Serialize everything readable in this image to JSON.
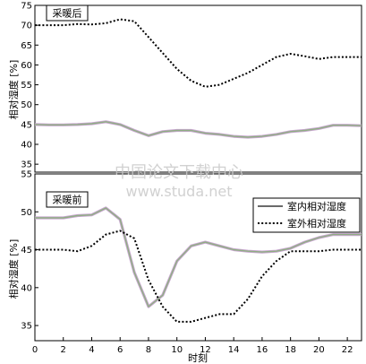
{
  "chart_data": [
    {
      "type": "line",
      "title": "采暖后",
      "ylabel": "相对湿度 [%]",
      "ylim": [
        33,
        75
      ],
      "yticks": [
        35,
        40,
        45,
        50,
        55,
        60,
        65,
        70,
        75
      ],
      "xlim": [
        0,
        23
      ],
      "x": [
        0,
        1,
        2,
        3,
        4,
        5,
        6,
        7,
        8,
        9,
        10,
        11,
        12,
        13,
        14,
        15,
        16,
        17,
        18,
        19,
        20,
        21,
        22,
        23
      ],
      "series": [
        {
          "key": "indoor",
          "style": "solid",
          "color": "#6a6a6a",
          "values": [
            45,
            44.9,
            44.9,
            45,
            45.2,
            45.7,
            45,
            43.5,
            42.2,
            43.2,
            43.5,
            43.5,
            42.8,
            42.5,
            42,
            41.8,
            42,
            42.5,
            43.2,
            43.5,
            44,
            44.8,
            44.8,
            44.7
          ]
        },
        {
          "key": "outdoor",
          "style": "dotted",
          "color": "#000000",
          "values": [
            70,
            70,
            70,
            70.3,
            70.2,
            70.5,
            71.5,
            71,
            67,
            63,
            59,
            56,
            54.5,
            55,
            56.5,
            58,
            60,
            62,
            62.8,
            62.2,
            61.5,
            62,
            62,
            62
          ]
        }
      ]
    },
    {
      "type": "line",
      "title": "采暖前",
      "ylabel": "相对湿度 [%]",
      "xlabel": "时刻",
      "ylim": [
        33,
        55
      ],
      "yticks": [
        35,
        40,
        45,
        50,
        55
      ],
      "xlim": [
        0,
        23
      ],
      "xticks": [
        0,
        2,
        4,
        6,
        8,
        10,
        12,
        14,
        16,
        18,
        20,
        22
      ],
      "legend_position": "top-right",
      "x": [
        0,
        1,
        2,
        3,
        4,
        5,
        6,
        7,
        8,
        9,
        10,
        11,
        12,
        13,
        14,
        15,
        16,
        17,
        18,
        19,
        20,
        21,
        22,
        23
      ],
      "series": [
        {
          "name": "室内相对湿度",
          "key": "indoor",
          "style": "solid",
          "color": "#6a6a6a",
          "values": [
            49.2,
            49.2,
            49.2,
            49.5,
            49.6,
            50.5,
            49,
            42,
            37.5,
            39,
            43.5,
            45.5,
            46,
            45.5,
            45,
            44.8,
            44.7,
            44.8,
            45.2,
            46,
            46.6,
            47,
            47,
            47
          ]
        },
        {
          "name": "室外相对湿度",
          "key": "outdoor",
          "style": "dotted",
          "color": "#000000",
          "values": [
            45,
            45,
            45,
            44.8,
            45.5,
            47,
            47.5,
            46.5,
            41,
            37.5,
            35.5,
            35.5,
            36,
            36.5,
            36.5,
            38.5,
            41.5,
            43.5,
            44.8,
            44.8,
            44.8,
            45,
            45,
            45
          ]
        }
      ]
    }
  ],
  "watermark": {
    "line1": "中国论文下载中心",
    "line2": "www.studa.net"
  }
}
